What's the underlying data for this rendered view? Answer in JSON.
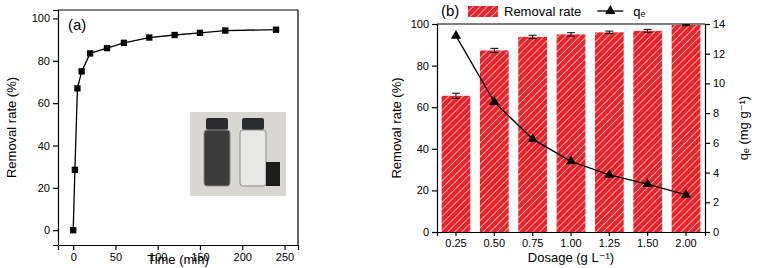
{
  "chart_data": [
    {
      "type": "line",
      "title": "(a)",
      "x_label": "Time (min)",
      "y_label": "Removal rate (%)",
      "x": [
        0,
        2,
        5,
        10,
        20,
        40,
        60,
        90,
        120,
        150,
        180,
        240
      ],
      "values": [
        0,
        28.5,
        67,
        75,
        83.5,
        86,
        88.5,
        91,
        92.2,
        93.2,
        94.3,
        94.7
      ],
      "color": "#000000",
      "marker": "square",
      "xlim": [
        -18,
        266
      ],
      "xticks": [
        0,
        50,
        100,
        150,
        200,
        250
      ],
      "ylim": [
        -7,
        104
      ],
      "yticks": [
        0,
        20,
        40,
        60,
        80,
        100
      ]
    },
    {
      "type": "bar",
      "title": "(b)",
      "x_label": "Dosage (g L⁻¹)",
      "y_label": "Removal rate (%)",
      "y2_label": "qₑ (mg g⁻¹)",
      "categories": [
        "0.25",
        "0.50",
        "0.75",
        "1.00",
        "1.25",
        "1.50",
        "2.00"
      ],
      "series": [
        {
          "name": "Removal rate",
          "type": "bar",
          "color": "#e8232a",
          "values": [
            65.5,
            87.3,
            93.8,
            95,
            96,
            96.7,
            99.5
          ],
          "error": [
            1.2,
            1.0,
            0.8,
            0.8,
            0.6,
            0.7,
            0.3
          ]
        },
        {
          "name": "qₑ",
          "type": "line",
          "axis": "y2",
          "color": "#000000",
          "marker": "triangle",
          "values": [
            13.2,
            8.75,
            6.25,
            4.75,
            3.85,
            3.22,
            2.5
          ]
        }
      ],
      "ylim": [
        0,
        100
      ],
      "yticks": [
        0,
        20,
        40,
        60,
        80,
        100
      ],
      "y2lim": [
        0,
        14
      ],
      "y2ticks": [
        0,
        2,
        4,
        6,
        8,
        10,
        12,
        14
      ],
      "legend": "top"
    }
  ]
}
